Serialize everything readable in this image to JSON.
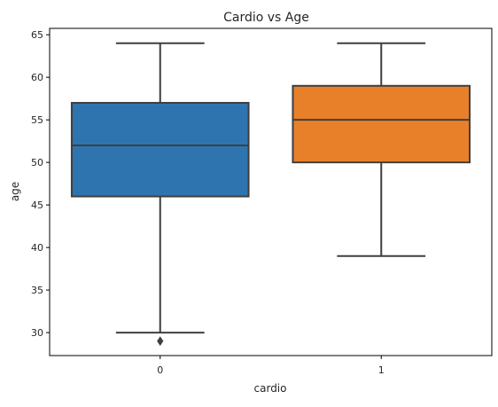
{
  "chart_data": {
    "type": "box",
    "title": "Cardio vs Age",
    "xlabel": "cardio",
    "ylabel": "age",
    "categories": [
      "0",
      "1"
    ],
    "ylim": [
      27.3,
      65.75
    ],
    "yticks": [
      30,
      35,
      40,
      45,
      50,
      55,
      60,
      65
    ],
    "boxes": [
      {
        "category": "0",
        "whisker_low": 30,
        "q1": 46,
        "median": 52,
        "q3": 57,
        "whisker_high": 64,
        "outliers": [
          29
        ],
        "color": "#2e75b0"
      },
      {
        "category": "1",
        "whisker_low": 39,
        "q1": 50,
        "median": 55,
        "q3": 59,
        "whisker_high": 64,
        "outliers": [],
        "color": "#e8802a"
      }
    ]
  }
}
